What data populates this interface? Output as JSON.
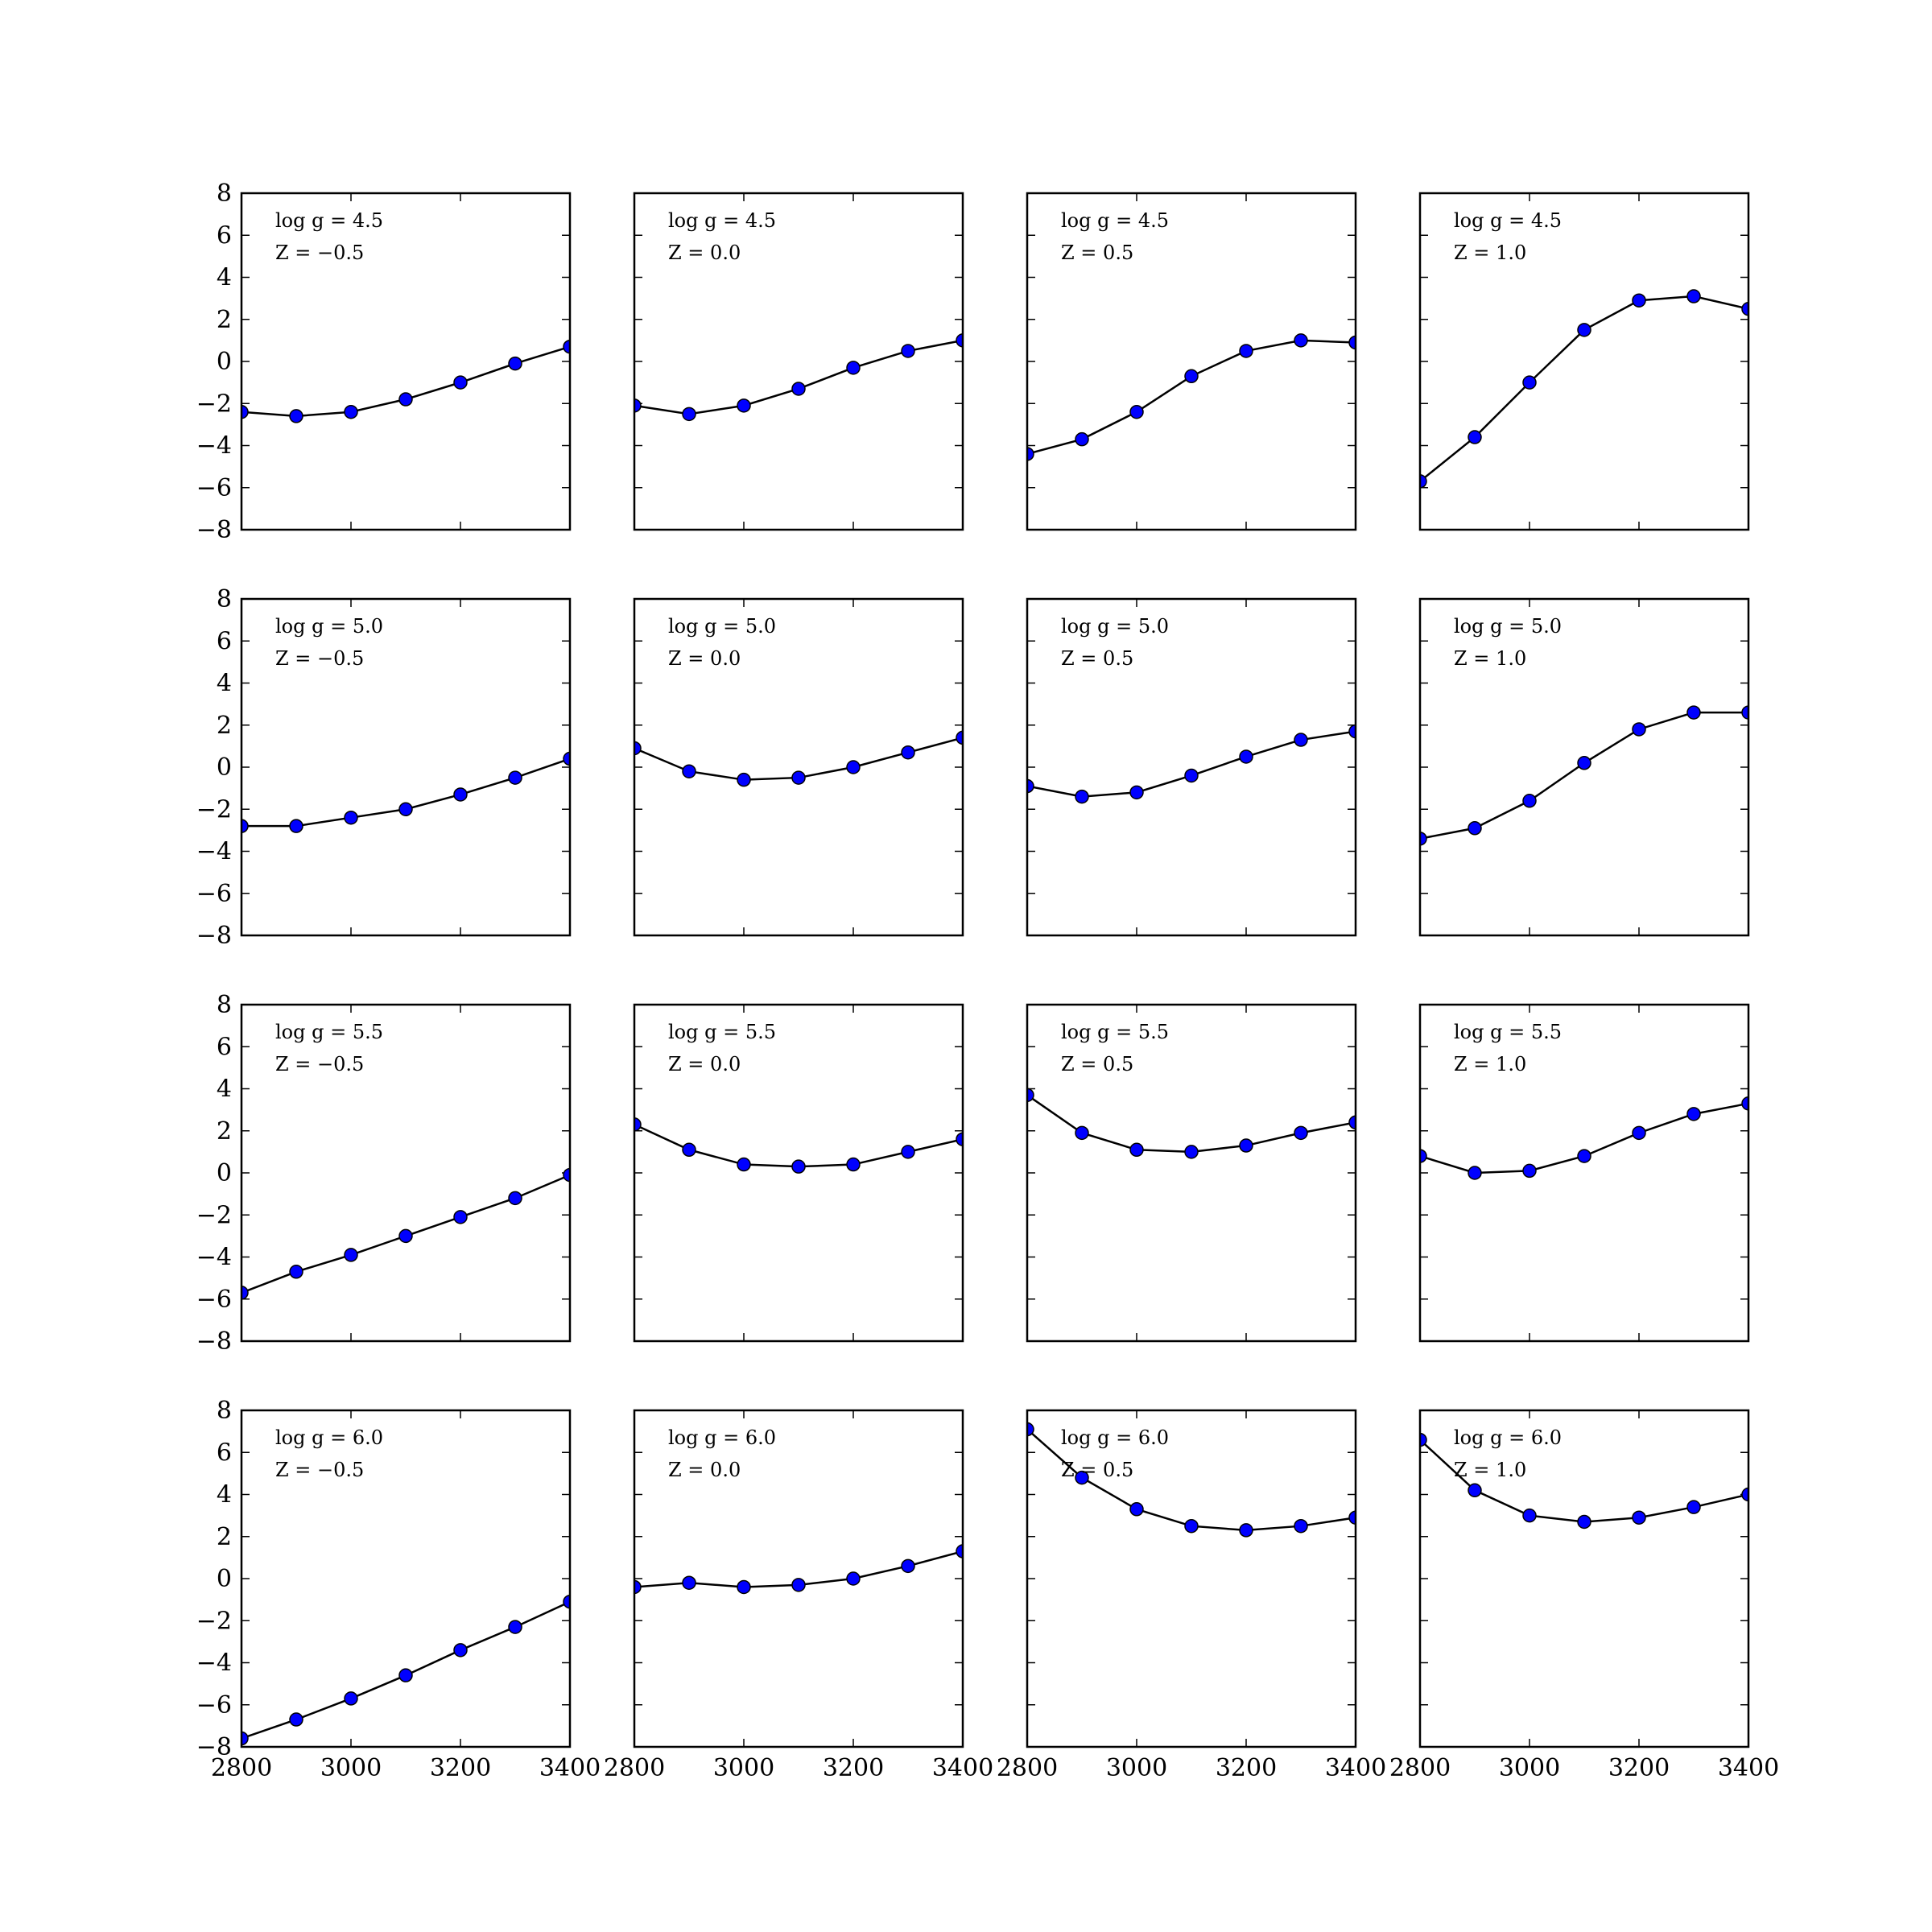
{
  "chart_data": {
    "type": "line",
    "layout": "4x4 grid of subplots",
    "x": [
      2800,
      2900,
      3000,
      3100,
      3200,
      3300,
      3400
    ],
    "xlim": [
      2800,
      3400
    ],
    "ylim": [
      -8,
      8
    ],
    "x_ticks": [
      "2800",
      "3000",
      "3200",
      "3400"
    ],
    "y_ticks": [
      "8",
      "6",
      "4",
      "2",
      "0",
      "−2",
      "−4",
      "−6",
      "−8"
    ],
    "grid": false,
    "legend": "none",
    "line_color": "#000000",
    "marker_color": "#0000ff",
    "marker_edge": "#000000",
    "marker": "circle",
    "panels": [
      {
        "logg": "log g = 4.5",
        "z": "Z = −0.5",
        "values": [
          -2.4,
          -2.6,
          -2.4,
          -1.8,
          -1.0,
          -0.1,
          0.7
        ]
      },
      {
        "logg": "log g = 4.5",
        "z": "Z = 0.0",
        "values": [
          -2.1,
          -2.5,
          -2.1,
          -1.3,
          -0.3,
          0.5,
          1.0
        ]
      },
      {
        "logg": "log g = 4.5",
        "z": "Z = 0.5",
        "values": [
          -4.4,
          -3.7,
          -2.4,
          -0.7,
          0.5,
          1.0,
          0.9
        ]
      },
      {
        "logg": "log g = 4.5",
        "z": "Z = 1.0",
        "values": [
          -5.7,
          -3.6,
          -1.0,
          1.5,
          2.9,
          3.1,
          2.5
        ]
      },
      {
        "logg": "log g = 5.0",
        "z": "Z = −0.5",
        "values": [
          -2.8,
          -2.8,
          -2.4,
          -2.0,
          -1.3,
          -0.5,
          0.4
        ]
      },
      {
        "logg": "log g = 5.0",
        "z": "Z = 0.0",
        "values": [
          0.9,
          -0.2,
          -0.6,
          -0.5,
          0.0,
          0.7,
          1.4
        ]
      },
      {
        "logg": "log g = 5.0",
        "z": "Z = 0.5",
        "values": [
          -0.9,
          -1.4,
          -1.2,
          -0.4,
          0.5,
          1.3,
          1.7
        ]
      },
      {
        "logg": "log g = 5.0",
        "z": "Z = 1.0",
        "values": [
          -3.4,
          -2.9,
          -1.6,
          0.2,
          1.8,
          2.6,
          2.6
        ]
      },
      {
        "logg": "log g = 5.5",
        "z": "Z = −0.5",
        "values": [
          -5.7,
          -4.7,
          -3.9,
          -3.0,
          -2.1,
          -1.2,
          -0.1
        ]
      },
      {
        "logg": "log g = 5.5",
        "z": "Z = 0.0",
        "values": [
          2.3,
          1.1,
          0.4,
          0.3,
          0.4,
          1.0,
          1.6
        ]
      },
      {
        "logg": "log g = 5.5",
        "z": "Z = 0.5",
        "values": [
          3.7,
          1.9,
          1.1,
          1.0,
          1.3,
          1.9,
          2.4
        ]
      },
      {
        "logg": "log g = 5.5",
        "z": "Z = 1.0",
        "values": [
          0.8,
          0.0,
          0.1,
          0.8,
          1.9,
          2.8,
          3.3
        ]
      },
      {
        "logg": "log g = 6.0",
        "z": "Z = −0.5",
        "values": [
          -7.6,
          -6.7,
          -5.7,
          -4.6,
          -3.4,
          -2.3,
          -1.1
        ]
      },
      {
        "logg": "log g = 6.0",
        "z": "Z = 0.0",
        "values": [
          -0.4,
          -0.2,
          -0.4,
          -0.3,
          0.0,
          0.6,
          1.3
        ]
      },
      {
        "logg": "log g = 6.0",
        "z": "Z = 0.5",
        "values": [
          7.1,
          4.8,
          3.3,
          2.5,
          2.3,
          2.5,
          2.9
        ]
      },
      {
        "logg": "log g = 6.0",
        "z": "Z = 1.0",
        "values": [
          6.6,
          4.2,
          3.0,
          2.7,
          2.9,
          3.4,
          4.0
        ]
      }
    ]
  }
}
